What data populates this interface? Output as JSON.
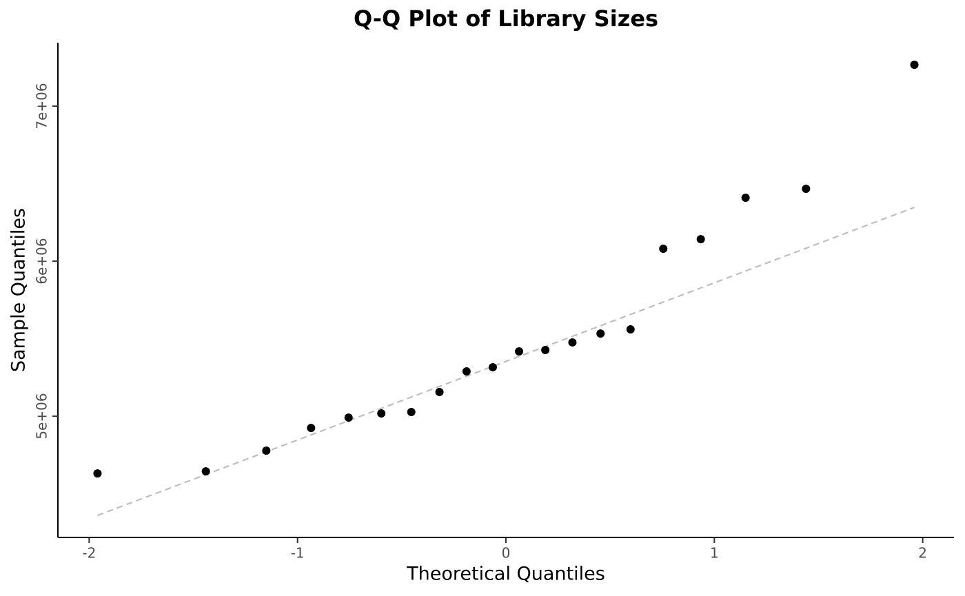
{
  "chart_data": {
    "type": "scatter",
    "title": "Q-Q Plot of Library Sizes",
    "x_label": "Theoretical Quantiles",
    "y_label": "Sample Quantiles",
    "series": [
      {
        "color": "#000000",
        "x": [
          -1.96,
          -1.44,
          -1.15,
          -0.935,
          -0.755,
          -0.598,
          -0.454,
          -0.319,
          -0.189,
          -0.063,
          0.063,
          0.189,
          0.319,
          0.454,
          0.598,
          0.755,
          0.935,
          1.15,
          1.44,
          1.96
        ],
        "values": [
          4631000,
          4644000,
          4778000,
          4924000,
          4991000,
          5018000,
          5027000,
          5156000,
          5289000,
          5316000,
          5418000,
          5427000,
          5476000,
          5533000,
          5560000,
          6080000,
          6142000,
          6409000,
          6467000,
          7267000
        ]
      }
    ],
    "reference_line": {
      "color": "#bebebe",
      "dashed": true,
      "x": [
        -1.96,
        1.96
      ],
      "y": [
        4360000,
        6347000
      ]
    },
    "xlim": [
      -2.15,
      2.15
    ],
    "xticks": [
      -2,
      -1,
      0,
      1,
      2
    ],
    "ylim": [
      4218000,
      7409000
    ],
    "yticks": [
      {
        "value": 5000000,
        "label": "5e+06"
      },
      {
        "value": 6000000,
        "label": "6e+06"
      },
      {
        "value": 7000000,
        "label": "7e+06"
      }
    ],
    "grid": false
  }
}
